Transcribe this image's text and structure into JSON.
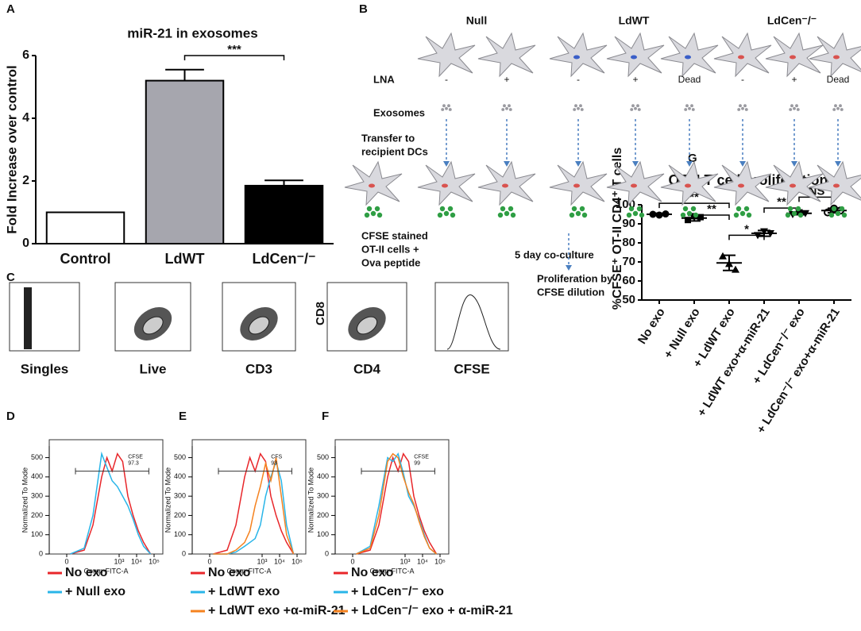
{
  "panel_labels": [
    "A",
    "B",
    "C",
    "D",
    "E",
    "F",
    "G"
  ],
  "chart_data": [
    {
      "type": "bar",
      "title": "miR-21 in exosomes",
      "ylabel": "Fold Increase over control",
      "categories": [
        "Control",
        "LdWT",
        "LdCen⁻/⁻"
      ],
      "values": [
        1,
        5.2,
        1.85
      ],
      "errors": [
        0,
        0.35,
        0.17
      ],
      "colors": [
        "#ffffff",
        "#a6a6ae",
        "#000000"
      ],
      "ylim": [
        0,
        6
      ],
      "yticks": [
        0,
        2,
        4,
        6
      ],
      "annotations": [
        {
          "text": "***",
          "from": 1,
          "to": 2,
          "y": 6
        }
      ]
    },
    {
      "type": "dot",
      "title": "OT-II T cell proliferation",
      "ylabel": "%CFSE⁺ OT-II CD4⁺ T cells",
      "categories": [
        "No exo",
        "+ Null exo",
        "+ LdWT exo",
        "+ LdWT exo+α-miR-21",
        "+ LdCen⁻/⁻ exo",
        "+ LdCen⁻/⁻ exo+α-miR-21"
      ],
      "values": [
        95,
        93,
        69.5,
        85,
        95.5,
        97
      ],
      "errors": [
        0.5,
        1.5,
        4,
        1.5,
        0.7,
        1.2
      ],
      "points": [
        [
          95,
          94.6,
          95.2
        ],
        [
          92,
          94,
          93.5
        ],
        [
          73,
          69,
          66
        ],
        [
          84,
          86,
          85
        ],
        [
          95,
          96,
          95.5
        ],
        [
          96,
          98,
          97
        ]
      ],
      "markers": [
        "circle",
        "square",
        "triangle",
        "triangle-down",
        "triangle-down",
        "circle-open"
      ],
      "ylim": [
        50,
        100
      ],
      "yticks": [
        50,
        60,
        70,
        80,
        90,
        100
      ],
      "annotations": [
        {
          "text": "**",
          "from": 0,
          "to": 2,
          "y": 100.8
        },
        {
          "text": "**",
          "from": 1,
          "to": 2,
          "y": 94.6
        },
        {
          "text": "*",
          "from": 2,
          "to": 3,
          "y": 84
        },
        {
          "text": "**",
          "from": 3,
          "to": 4,
          "y": 98.3
        },
        {
          "text": "NS",
          "from": 4,
          "to": 5,
          "y": 104
        }
      ]
    },
    {
      "type": "line",
      "xlabel": "Comp-FITC-A",
      "ylabel": "Normalized To Mode",
      "x": [
        0.2,
        1.0,
        1.5,
        2.0,
        2.3,
        2.6,
        2.9,
        3.2,
        3.5,
        3.8,
        4.1,
        4.4,
        4.8
      ],
      "series": [
        {
          "name": "No exo",
          "color": "#e8262a",
          "values": [
            0,
            20,
            150,
            400,
            500,
            430,
            520,
            480,
            300,
            200,
            120,
            60,
            0
          ]
        },
        {
          "name": "+ Null exo",
          "color": "#29b5e8",
          "values": [
            0,
            30,
            200,
            520,
            450,
            380,
            350,
            300,
            250,
            180,
            100,
            40,
            0
          ]
        }
      ],
      "gate": {
        "name": "CFSE",
        "percent": 97.3,
        "x": [
          0.5,
          4.7
        ],
        "y": 430
      },
      "xlim": [
        -1,
        5.5
      ],
      "xticks": [
        0,
        {
          "value": 3,
          "label": "10³"
        },
        {
          "value": 4,
          "label": "10⁴"
        },
        {
          "value": 5,
          "label": "10⁵"
        }
      ],
      "ylim": [
        0,
        560
      ],
      "yticks": [
        0,
        100,
        200,
        300,
        400,
        500
      ]
    },
    {
      "type": "line",
      "xlabel": "Comp-FITC-A",
      "ylabel": "Normalized To Mode",
      "x": [
        0.2,
        1.0,
        1.5,
        2.0,
        2.3,
        2.6,
        2.9,
        3.2,
        3.5,
        3.8,
        4.1,
        4.4,
        4.8
      ],
      "series": [
        {
          "name": "No exo",
          "color": "#e8262a",
          "values": [
            0,
            20,
            150,
            400,
            500,
            430,
            520,
            480,
            300,
            200,
            120,
            60,
            0
          ]
        },
        {
          "name": "+ LdWT exo",
          "color": "#29b5e8",
          "values": [
            0,
            0,
            10,
            40,
            60,
            80,
            150,
            300,
            400,
            480,
            380,
            150,
            0
          ]
        },
        {
          "name": "+ LdWT exo +α-miR-21",
          "color": "#f5821f",
          "values": [
            0,
            0,
            20,
            60,
            120,
            250,
            350,
            470,
            380,
            500,
            300,
            100,
            0
          ]
        }
      ],
      "gate": {
        "name": "CFS",
        "percent": 93,
        "x": [
          0.5,
          4.7
        ],
        "y": 430
      },
      "xlim": [
        -1,
        5.5
      ],
      "xticks": [
        0,
        {
          "value": 3,
          "label": "10³"
        },
        {
          "value": 4,
          "label": "10⁴"
        },
        {
          "value": 5,
          "label": "10⁵"
        }
      ],
      "ylim": [
        0,
        560
      ],
      "yticks": [
        0,
        100,
        200,
        300,
        400,
        500
      ]
    },
    {
      "type": "line",
      "xlabel": "Comp-FITC-A",
      "ylabel": "Normalized To Mode",
      "x": [
        0.2,
        1.0,
        1.5,
        2.0,
        2.3,
        2.6,
        2.9,
        3.2,
        3.5,
        3.8,
        4.1,
        4.4,
        4.8
      ],
      "series": [
        {
          "name": "No exo",
          "color": "#e8262a",
          "values": [
            0,
            20,
            150,
            400,
            500,
            430,
            520,
            480,
            300,
            200,
            120,
            60,
            0
          ]
        },
        {
          "name": "+ LdCen⁻/⁻ exo",
          "color": "#29b5e8",
          "values": [
            0,
            40,
            250,
            500,
            480,
            520,
            420,
            300,
            250,
            180,
            100,
            30,
            0
          ]
        },
        {
          "name": "+ LdCen⁻/⁻ exo + α-miR-21",
          "color": "#f5821f",
          "values": [
            0,
            30,
            200,
            480,
            520,
            500,
            400,
            320,
            260,
            170,
            90,
            30,
            0
          ]
        }
      ],
      "gate": {
        "name": "CFSE",
        "percent": 99.0,
        "x": [
          0.5,
          4.7
        ],
        "y": 430
      },
      "xlim": [
        -1,
        5.5
      ],
      "xticks": [
        0,
        {
          "value": 3,
          "label": "10³"
        },
        {
          "value": 4,
          "label": "10⁴"
        },
        {
          "value": 5,
          "label": "10⁵"
        }
      ],
      "ylim": [
        0,
        560
      ],
      "yticks": [
        0,
        100,
        200,
        300,
        400,
        500
      ]
    }
  ],
  "diagram": {
    "groups": [
      "Null",
      "LdWT",
      "LdCen⁻/⁻"
    ],
    "lna_label": "LNA",
    "lna": [
      "-",
      "+",
      "-",
      "+",
      "Dead",
      "-",
      "+",
      "Dead"
    ],
    "exosomes": "Exosomes",
    "transfer": [
      "Transfer to",
      "recipient DCs"
    ],
    "cfse": [
      "CFSE stained",
      "OT-II cells +",
      "Ova peptide"
    ],
    "coculture": "5 day co-culture",
    "proliferation": [
      "Proliferation by",
      "CFSE dilution"
    ]
  },
  "flow": {
    "gates": [
      "Singles",
      "Live",
      "CD3",
      "CD4",
      "CFSE"
    ],
    "axis": "CD8"
  }
}
